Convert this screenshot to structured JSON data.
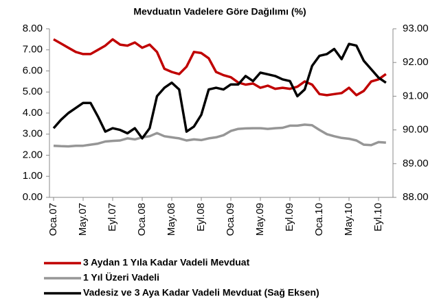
{
  "chart_data": {
    "type": "line",
    "title": "Mevduatın Vadelere Göre Dağılımı (%)",
    "categories": [
      "Oca.07",
      null,
      null,
      null,
      "May.07",
      null,
      null,
      null,
      "Eyl.07",
      null,
      null,
      null,
      "Oca.08",
      null,
      null,
      null,
      "May.08",
      null,
      null,
      null,
      "Eyl.08",
      null,
      null,
      null,
      "Oca.09",
      null,
      null,
      null,
      "May.09",
      null,
      null,
      null,
      "Eyl.09",
      null,
      null,
      null,
      "Oca.10",
      null,
      null,
      null,
      "May.10",
      null,
      null,
      null,
      "Eyl.10",
      null
    ],
    "ylim": [
      0,
      8
    ],
    "yticks": [
      {
        "value": 0,
        "label": "0.00"
      },
      {
        "value": 1,
        "label": "1.00"
      },
      {
        "value": 2,
        "label": "2.00"
      },
      {
        "value": 3,
        "label": "3.00"
      },
      {
        "value": 4,
        "label": "4.00"
      },
      {
        "value": 5,
        "label": "5.00"
      },
      {
        "value": 6,
        "label": "6.00"
      },
      {
        "value": 7,
        "label": "7.00"
      },
      {
        "value": 8,
        "label": "8.00"
      }
    ],
    "y2lim": [
      88,
      93
    ],
    "y2ticks": [
      {
        "value": 88,
        "label": "88.00"
      },
      {
        "value": 89,
        "label": "89.00"
      },
      {
        "value": 90,
        "label": "90.00"
      },
      {
        "value": 91,
        "label": "91.00"
      },
      {
        "value": 92,
        "label": "92.00"
      },
      {
        "value": 93,
        "label": "93.00"
      }
    ],
    "series": [
      {
        "name": "3 Aydan 1 Yıla Kadar Vadeli Mevduat",
        "color": "#c00000",
        "values": [
          7.5,
          7.3,
          7.1,
          6.9,
          6.8,
          6.8,
          7.0,
          7.2,
          7.5,
          7.25,
          7.2,
          7.35,
          7.1,
          7.25,
          6.9,
          6.1,
          5.95,
          5.85,
          6.2,
          6.9,
          6.85,
          6.6,
          5.95,
          5.8,
          5.7,
          5.45,
          5.35,
          5.4,
          5.2,
          5.3,
          5.15,
          5.2,
          5.15,
          5.25,
          5.5,
          5.35,
          4.9,
          4.85,
          4.9,
          4.95,
          5.2,
          4.85,
          5.05,
          5.5,
          5.6,
          5.85
        ]
      },
      {
        "name": "1 Yıl Üzeri Vadeli",
        "color": "#969696",
        "values": [
          2.45,
          2.43,
          2.42,
          2.45,
          2.45,
          2.5,
          2.55,
          2.65,
          2.68,
          2.7,
          2.8,
          2.75,
          2.85,
          2.9,
          3.05,
          2.9,
          2.85,
          2.8,
          2.7,
          2.75,
          2.72,
          2.8,
          2.85,
          2.95,
          3.15,
          3.25,
          3.27,
          3.28,
          3.28,
          3.25,
          3.28,
          3.3,
          3.4,
          3.4,
          3.45,
          3.42,
          3.2,
          3.0,
          2.9,
          2.82,
          2.78,
          2.7,
          2.5,
          2.48,
          2.62,
          2.6
        ]
      },
      {
        "name": "Vadesiz ve 3 Aya Kadar Vadeli Mevduat (Sağ Eksen)",
        "color": "#000000",
        "axis": "y2",
        "values": [
          90.05,
          90.3,
          90.5,
          90.65,
          90.8,
          90.8,
          90.4,
          89.95,
          90.05,
          90.0,
          89.9,
          90.05,
          89.75,
          90.05,
          91.0,
          91.25,
          91.4,
          91.2,
          89.95,
          90.1,
          90.45,
          91.2,
          91.25,
          91.2,
          91.35,
          91.35,
          91.6,
          91.45,
          91.7,
          91.65,
          91.6,
          91.5,
          91.45,
          91.0,
          91.2,
          91.9,
          92.2,
          92.25,
          92.4,
          92.1,
          92.55,
          92.5,
          92.05,
          91.8,
          91.55,
          91.4
        ]
      }
    ]
  }
}
